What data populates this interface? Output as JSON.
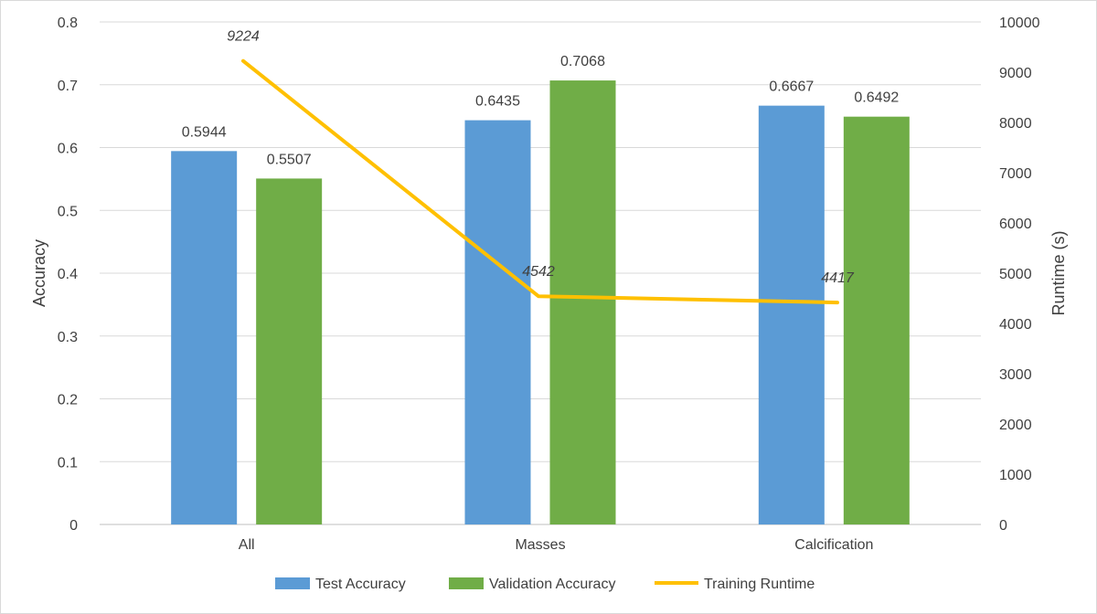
{
  "chart_data": {
    "type": "bar",
    "title": "",
    "categories": [
      "All",
      "Masses",
      "Calcification"
    ],
    "series": [
      {
        "name": "Test Accuracy",
        "kind": "bar",
        "axis": "left",
        "color": "#5b9bd5",
        "values": [
          0.5944,
          0.6435,
          0.6667
        ],
        "labels": [
          "0.5944",
          "0.6435",
          "0.6667"
        ]
      },
      {
        "name": "Validation Accuracy",
        "kind": "bar",
        "axis": "left",
        "color": "#70ad47",
        "values": [
          0.5507,
          0.7068,
          0.6492
        ],
        "labels": [
          "0.5507",
          "0.7068",
          "0.6492"
        ]
      },
      {
        "name": "Training Runtime",
        "kind": "line",
        "axis": "right",
        "color": "#ffc000",
        "values": [
          9224,
          4542,
          4417
        ],
        "labels": [
          "9224",
          "4542",
          "4417"
        ]
      }
    ],
    "ylabel": "Accuracy",
    "ylim": [
      0,
      0.8
    ],
    "yticks": [
      "0",
      "0.1",
      "0.2",
      "0.3",
      "0.4",
      "0.5",
      "0.6",
      "0.7",
      "0.8"
    ],
    "y2label": "Runtime (s)",
    "y2lim": [
      0,
      10000
    ],
    "y2ticks": [
      "0",
      "1000",
      "2000",
      "3000",
      "4000",
      "5000",
      "6000",
      "7000",
      "8000",
      "9000",
      "10000"
    ],
    "grid": true,
    "legend_position": "bottom"
  }
}
